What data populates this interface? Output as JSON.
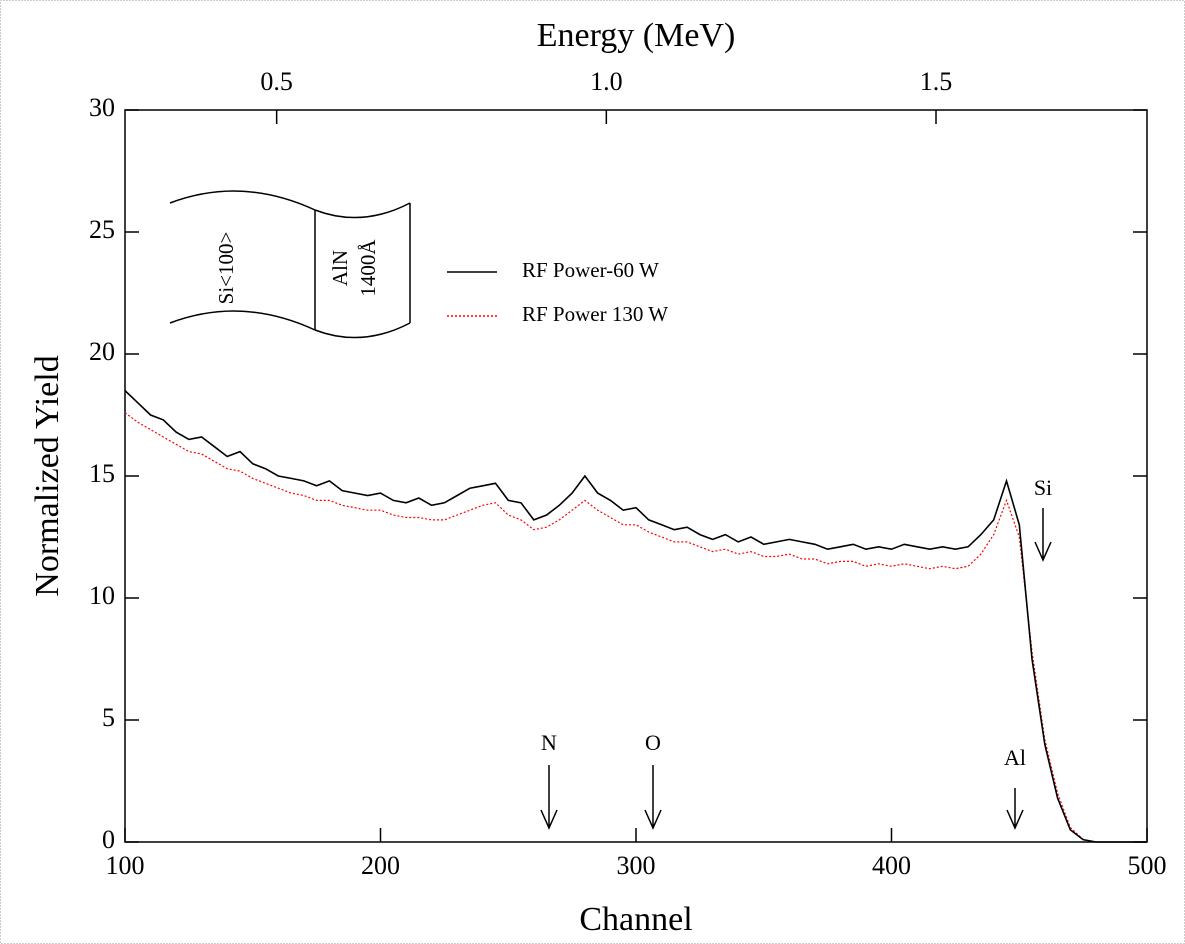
{
  "chart_data": {
    "type": "line",
    "title": "Energy (MeV)",
    "x_label": "Channel",
    "y_label": "Normalized Yield",
    "xlim": [
      100,
      500
    ],
    "xticks": [
      100,
      200,
      300,
      400,
      500
    ],
    "x2lim": [
      0.27,
      1.82
    ],
    "x2ticks": [
      0.5,
      {
        "value": 1,
        "label": "1.0"
      },
      1.5
    ],
    "ylim": [
      0,
      30
    ],
    "yticks": [
      0,
      5,
      10,
      15,
      20,
      25,
      30
    ],
    "x": [
      100,
      105,
      110,
      115,
      120,
      125,
      130,
      135,
      140,
      145,
      150,
      155,
      160,
      165,
      170,
      175,
      180,
      185,
      190,
      195,
      200,
      205,
      210,
      215,
      220,
      225,
      230,
      235,
      240,
      245,
      250,
      255,
      260,
      265,
      270,
      275,
      280,
      285,
      290,
      295,
      300,
      305,
      310,
      315,
      320,
      325,
      330,
      335,
      340,
      345,
      350,
      355,
      360,
      365,
      370,
      375,
      380,
      385,
      390,
      395,
      400,
      405,
      410,
      415,
      420,
      425,
      430,
      435,
      440,
      445,
      450,
      455,
      460,
      465,
      470,
      475,
      480,
      485,
      490,
      495,
      500
    ],
    "series": [
      {
        "name": "RF Power-60 W",
        "color": "#000000",
        "dash": false,
        "values": [
          18.5,
          18.0,
          17.5,
          17.3,
          16.8,
          16.5,
          16.6,
          16.2,
          15.8,
          16.0,
          15.5,
          15.3,
          15.0,
          14.9,
          14.8,
          14.6,
          14.8,
          14.4,
          14.3,
          14.2,
          14.3,
          14.0,
          13.9,
          14.1,
          13.8,
          13.9,
          14.2,
          14.5,
          14.6,
          14.7,
          14.0,
          13.9,
          13.2,
          13.4,
          13.8,
          14.3,
          15.0,
          14.3,
          14.0,
          13.6,
          13.7,
          13.2,
          13.0,
          12.8,
          12.9,
          12.6,
          12.4,
          12.6,
          12.3,
          12.5,
          12.2,
          12.3,
          12.4,
          12.3,
          12.2,
          12.0,
          12.1,
          12.2,
          12.0,
          12.1,
          12.0,
          12.2,
          12.1,
          12.0,
          12.1,
          12.0,
          12.1,
          12.6,
          13.2,
          14.8,
          13.0,
          7.5,
          4.0,
          1.8,
          0.5,
          0.1,
          0,
          0,
          0,
          0,
          0
        ]
      },
      {
        "name": "RF Power 130 W",
        "color": "#ff0000",
        "dash": true,
        "values": [
          17.6,
          17.2,
          16.9,
          16.6,
          16.3,
          16.0,
          15.9,
          15.6,
          15.3,
          15.2,
          14.9,
          14.7,
          14.5,
          14.3,
          14.2,
          14.0,
          14.0,
          13.8,
          13.7,
          13.6,
          13.6,
          13.4,
          13.3,
          13.3,
          13.2,
          13.2,
          13.4,
          13.6,
          13.8,
          13.9,
          13.4,
          13.2,
          12.8,
          12.9,
          13.2,
          13.6,
          14.0,
          13.6,
          13.3,
          13.0,
          13.0,
          12.7,
          12.5,
          12.3,
          12.3,
          12.1,
          11.9,
          12.0,
          11.8,
          11.9,
          11.7,
          11.7,
          11.8,
          11.6,
          11.6,
          11.4,
          11.5,
          11.5,
          11.3,
          11.4,
          11.3,
          11.4,
          11.3,
          11.2,
          11.3,
          11.2,
          11.3,
          11.8,
          12.6,
          14.0,
          12.5,
          7.8,
          4.2,
          2.0,
          0.6,
          0.1,
          0,
          0,
          0,
          0,
          0
        ]
      }
    ],
    "annotations": [
      "N",
      "O",
      "Al",
      "Si"
    ],
    "inset": {
      "substrate": "Si<100>",
      "film": "AlN",
      "thickness": "1400Å"
    }
  }
}
